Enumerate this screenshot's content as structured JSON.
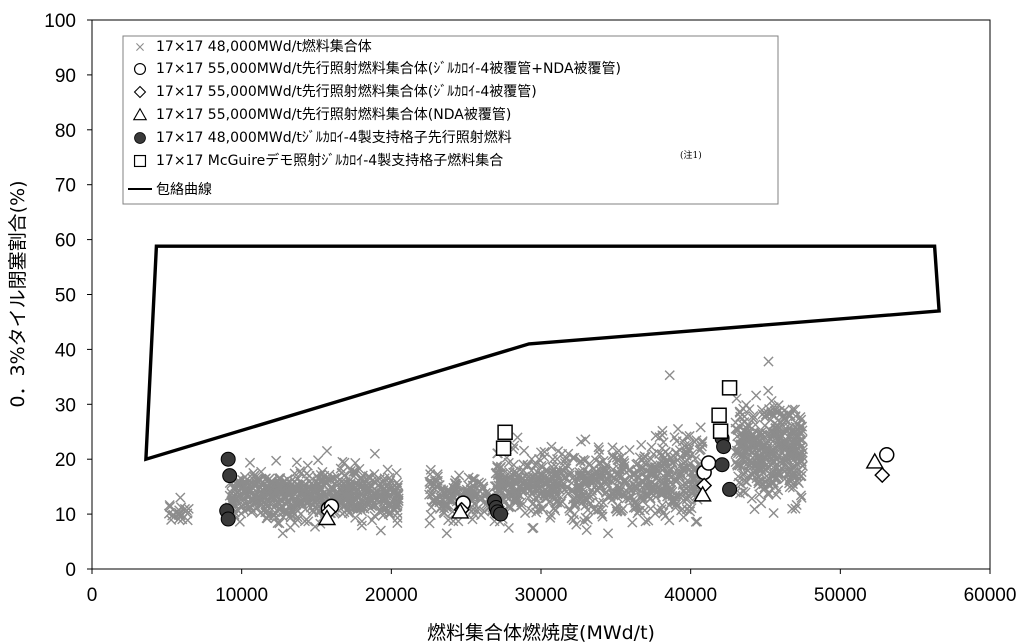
{
  "chart_data": {
    "type": "scatter",
    "xlabel": "燃料集合体燃焼度(MWd/t)",
    "ylabel": "0．3%タイル閉塞割合(%)",
    "xlim": [
      0,
      60000
    ],
    "ylim": [
      0,
      100
    ],
    "x_ticks": [
      "0",
      "10000",
      "20000",
      "30000",
      "40000",
      "50000",
      "60000"
    ],
    "y_ticks": [
      "0",
      "10",
      "20",
      "30",
      "40",
      "50",
      "60",
      "70",
      "80",
      "90",
      "100"
    ],
    "grid": false,
    "legend_position": "top-left",
    "legend_note": "(注1)",
    "series": [
      {
        "name": "17×17  48,000MWd/t燃料集合体",
        "marker": "x",
        "color": "#8c8c8c",
        "clusters": [
          {
            "x_range": [
              5000,
              6500
            ],
            "y_mean": 10.5,
            "y_sd": 0.8,
            "count": 20
          },
          {
            "x_range": [
              9200,
              20500
            ],
            "y_mean": 13.5,
            "y_sd": 2.3,
            "count": 650
          },
          {
            "x_range": [
              22500,
              27000
            ],
            "y_mean": 13.0,
            "y_sd": 2.0,
            "count": 160
          },
          {
            "x_range": [
              27000,
              40500
            ],
            "y_mean": 15.5,
            "y_sd": 3.0,
            "count": 700
          },
          {
            "x_range": [
              38000,
              40800
            ],
            "y_mean": 21.0,
            "y_sd": 3.0,
            "count": 60
          },
          {
            "x_range": [
              43000,
              47500
            ],
            "y_mean": 22.0,
            "y_sd": 4.0,
            "count": 420
          }
        ],
        "points": [
          {
            "x": 38600,
            "y": 35.3
          },
          {
            "x": 45200,
            "y": 37.8
          },
          {
            "x": 5900,
            "y": 13.0
          },
          {
            "x": 15700,
            "y": 21.5
          },
          {
            "x": 18900,
            "y": 21.0
          },
          {
            "x": 19300,
            "y": 7.0
          },
          {
            "x": 29500,
            "y": 7.5
          },
          {
            "x": 47000,
            "y": 11.0
          }
        ]
      },
      {
        "name": "17×17  55,000MWd/t先行照射燃料集合体(ｼﾞﾙｶﾛｲ-4被覆管+NDA被覆管)",
        "marker": "circle-open",
        "points": [
          {
            "x": 15800,
            "y": 11.0
          },
          {
            "x": 16000,
            "y": 11.4
          },
          {
            "x": 24800,
            "y": 12.0
          },
          {
            "x": 40900,
            "y": 17.6
          },
          {
            "x": 41200,
            "y": 19.3
          },
          {
            "x": 53100,
            "y": 20.8
          }
        ]
      },
      {
        "name": "17×17  55,000MWd/t先行照射燃料集合体(ｼﾞﾙｶﾛｲ-4被覆管)",
        "marker": "diamond-open",
        "points": [
          {
            "x": 15800,
            "y": 10.4
          },
          {
            "x": 24700,
            "y": 10.8
          },
          {
            "x": 40900,
            "y": 15.2
          },
          {
            "x": 52800,
            "y": 17.1
          }
        ]
      },
      {
        "name": "17×17  55,000MWd/t先行照射燃料集合体(NDA被覆管)",
        "marker": "triangle-open",
        "points": [
          {
            "x": 15700,
            "y": 9.2
          },
          {
            "x": 24600,
            "y": 10.4
          },
          {
            "x": 40800,
            "y": 13.5
          },
          {
            "x": 52300,
            "y": 19.5
          }
        ]
      },
      {
        "name": "17×17  48,000MWd/tｼﾞﾙｶﾛｲ-4製支持格子先行照射燃料",
        "marker": "circle-filled",
        "color": "#3a3a3a",
        "points": [
          {
            "x": 9100,
            "y": 20.0
          },
          {
            "x": 9200,
            "y": 17.0
          },
          {
            "x": 9000,
            "y": 10.6
          },
          {
            "x": 9100,
            "y": 9.1
          },
          {
            "x": 26900,
            "y": 12.3
          },
          {
            "x": 27000,
            "y": 11.2
          },
          {
            "x": 27100,
            "y": 10.4
          },
          {
            "x": 27300,
            "y": 10.0
          },
          {
            "x": 42100,
            "y": 23.8
          },
          {
            "x": 42200,
            "y": 22.3
          },
          {
            "x": 42100,
            "y": 19.0
          },
          {
            "x": 42600,
            "y": 14.5
          }
        ]
      },
      {
        "name": "17×17  McGuireデモ照射ｼﾞﾙｶﾛｲ-4製支持格子燃料集合",
        "marker": "square-open",
        "points": [
          {
            "x": 27600,
            "y": 24.9
          },
          {
            "x": 27500,
            "y": 22.0
          },
          {
            "x": 41900,
            "y": 28.0
          },
          {
            "x": 42000,
            "y": 25.1
          },
          {
            "x": 42600,
            "y": 33.0
          }
        ]
      },
      {
        "name": "包絡曲線",
        "marker": "line",
        "points": [
          {
            "x": 4300,
            "y": 58.8
          },
          {
            "x": 56300,
            "y": 58.8
          },
          {
            "x": 56600,
            "y": 47.0
          },
          {
            "x": 29200,
            "y": 41.0
          },
          {
            "x": 3600,
            "y": 20.0
          },
          {
            "x": 4300,
            "y": 58.8
          }
        ]
      }
    ]
  }
}
